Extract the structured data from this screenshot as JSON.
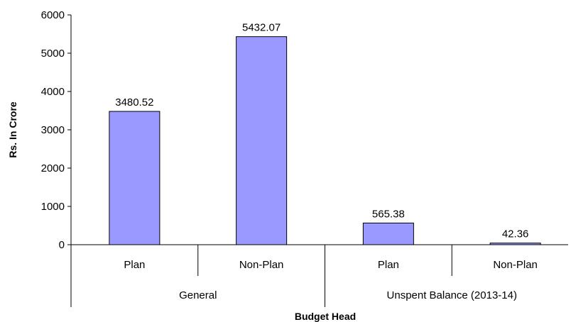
{
  "chart_data": {
    "type": "bar",
    "categories": [
      "Plan",
      "Non-Plan",
      "Plan",
      "Non-Plan"
    ],
    "groups": [
      {
        "label": "General",
        "categories": [
          "Plan",
          "Non-Plan"
        ]
      },
      {
        "label": "Unspent Balance (2013-14)",
        "categories": [
          "Plan",
          "Non-Plan"
        ]
      }
    ],
    "values": [
      3480.52,
      5432.07,
      565.38,
      42.36
    ],
    "data_labels": [
      "3480.52",
      "5432.07",
      "565.38",
      "42.36"
    ],
    "title": "",
    "xlabel": "Budget Head",
    "ylabel": "Rs. In Crore",
    "ylim": [
      0,
      6000
    ],
    "yticks": [
      0,
      1000,
      2000,
      3000,
      4000,
      5000,
      6000
    ],
    "grid": false,
    "legend": "none",
    "bar_color": "#9999ff",
    "bar_edge_color": "#000000"
  }
}
